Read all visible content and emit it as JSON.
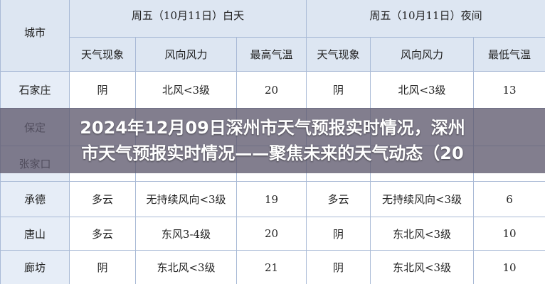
{
  "table": {
    "corner": "城市",
    "groups": [
      "周五（10月11日）白天",
      "周五（10月11日）夜间"
    ],
    "columns": [
      "天气现象",
      "风向风力",
      "最高气温",
      "天气现象",
      "风向风力",
      "最低气温"
    ],
    "rows": [
      [
        "石家庄",
        "阴",
        "北风<3级",
        "20",
        "阴",
        "北风<3级",
        "13"
      ],
      [
        "保定"
      ],
      [
        "张家口"
      ],
      [
        "承德",
        "多云",
        "无持续风向<3级",
        "19",
        "多云",
        "无持续风向<3级",
        "6"
      ],
      [
        "唐山",
        "多云",
        "东风3-4级",
        "20",
        "阴",
        "东北风<3级",
        "10"
      ],
      [
        "廊坊",
        "阴",
        "东北风<3级",
        "21",
        "阴",
        "东北风<3级",
        "10"
      ]
    ]
  },
  "banner": {
    "lines": [
      "2024年12月09日深州市天气预报实时情况，深州",
      "市天气预报实时情况——聚焦未来的天气动态（20"
    ]
  }
}
